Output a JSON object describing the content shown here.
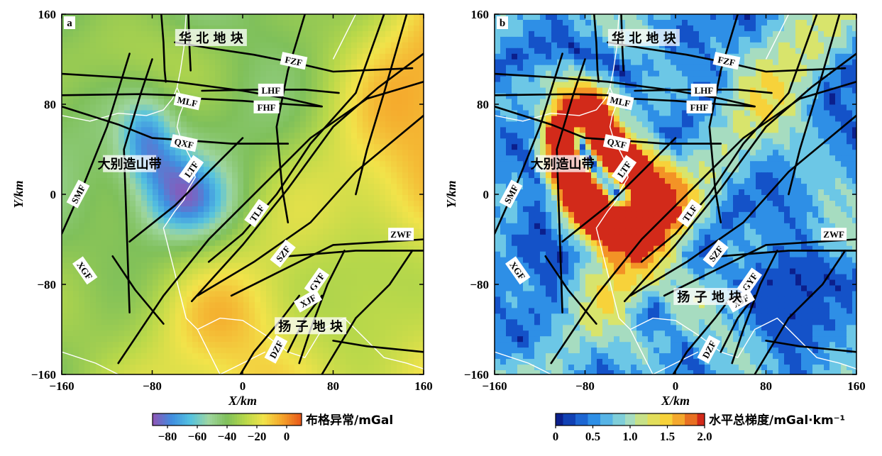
{
  "chart_data": [
    {
      "type": "heatmap",
      "panel": "a",
      "xlabel": "X/km",
      "ylabel": "Y/km",
      "xlim": [
        -160,
        160
      ],
      "ylim": [
        -160,
        160
      ],
      "xticks": [
        "-160",
        "-80",
        "0",
        "80",
        "160"
      ],
      "yticks": [
        "160",
        "80",
        "0",
        "-80",
        "-160"
      ],
      "colorbar": {
        "label": "布格异常/mGal",
        "ticks": [
          "-80",
          "-60",
          "-40",
          "-20",
          "0"
        ],
        "range": [
          -90,
          10
        ],
        "colors": [
          "#8b57b8",
          "#3f8fe0",
          "#54c2e0",
          "#9fd6a0",
          "#7fc05a",
          "#b8d84a",
          "#f2e34a",
          "#f5a52a",
          "#e85a1a"
        ]
      },
      "region_labels": [
        "华 北 地 块",
        "大别造山带",
        "扬 子 地 块"
      ],
      "fault_labels": [
        "FZF",
        "LHF",
        "MLF",
        "FHF",
        "QXF",
        "LTF",
        "SMF",
        "TLF",
        "ZWF",
        "SZF",
        "XGF",
        "GYF",
        "XJF",
        "DZF"
      ]
    },
    {
      "type": "heatmap",
      "panel": "b",
      "xlabel": "X/km",
      "ylabel": "Y/km",
      "xlim": [
        -160,
        160
      ],
      "ylim": [
        -160,
        160
      ],
      "xticks": [
        "-160",
        "-80",
        "0",
        "80",
        "160"
      ],
      "yticks": [
        "160",
        "80",
        "0",
        "-80",
        "-160"
      ],
      "colorbar": {
        "label": "水平总梯度/mGal·km⁻¹",
        "ticks": [
          "0",
          "0.5",
          "1.0",
          "1.5",
          "2.0"
        ],
        "range": [
          0,
          2.0
        ],
        "colors": [
          "#0b1f8c",
          "#1452c8",
          "#2e8fe6",
          "#6cc7e6",
          "#a6dcc0",
          "#d8e46c",
          "#f7d23a",
          "#f39326",
          "#d22a1a"
        ]
      },
      "region_labels": [
        "华 北 地 块",
        "大别造山带",
        "扬 子 地 块"
      ],
      "fault_labels": [
        "FZF",
        "LHF",
        "MLF",
        "FHF",
        "QXF",
        "LTF",
        "SMF",
        "TLF",
        "ZWF",
        "SZF",
        "XGF",
        "GYF",
        "XJF",
        "DZF"
      ]
    }
  ]
}
